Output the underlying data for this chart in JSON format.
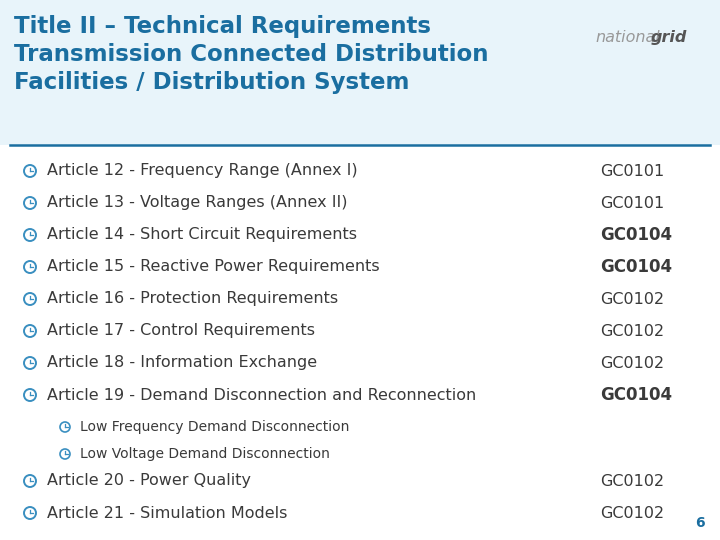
{
  "title_line1": "Title II – Technical Requirements",
  "title_line2": "Transmission Connected Distribution",
  "title_line3": "Facilities / Distribution System",
  "title_color": "#1A6EA0",
  "header_bg": "#E8F4FA",
  "body_bg": "#FFFFFF",
  "logo_normal": "national",
  "logo_bold": "grid",
  "logo_normal_color": "#999999",
  "logo_bold_color": "#555555",
  "line_color": "#1A6EA0",
  "bullet_color": "#3A8FC0",
  "text_color": "#3A3A3A",
  "gc_color": "#3A3A3A",
  "items": [
    {
      "text": "Article 12 - Frequency Range (Annex I)",
      "gc": "GC0101",
      "bold_gc": false,
      "indent": 0,
      "gc_inline": false
    },
    {
      "text": "Article 13 - Voltage Ranges (Annex II)",
      "gc": "GC0101",
      "bold_gc": false,
      "indent": 0,
      "gc_inline": false
    },
    {
      "text": "Article 14 - Short Circuit Requirements",
      "gc": "GC0104",
      "bold_gc": true,
      "indent": 0,
      "gc_inline": false
    },
    {
      "text": "Article 15 - Reactive Power Requirements",
      "gc": "GC0104",
      "bold_gc": true,
      "indent": 0,
      "gc_inline": false
    },
    {
      "text": "Article 16 - Protection Requirements",
      "gc": "GC0102",
      "bold_gc": false,
      "indent": 0,
      "gc_inline": false
    },
    {
      "text": "Article 17 - Control Requirements",
      "gc": "GC0102",
      "bold_gc": false,
      "indent": 0,
      "gc_inline": false
    },
    {
      "text": "Article 18 - Information Exchange",
      "gc": "GC0102",
      "bold_gc": false,
      "indent": 0,
      "gc_inline": false
    },
    {
      "text": "Article 19 - Demand Disconnection and Reconnection",
      "gc": "GC0104",
      "bold_gc": true,
      "indent": 0,
      "gc_inline": true
    },
    {
      "text": "Low Frequency Demand Disconnection",
      "gc": "",
      "bold_gc": false,
      "indent": 1,
      "gc_inline": false
    },
    {
      "text": "Low Voltage Demand Disconnection",
      "gc": "",
      "bold_gc": false,
      "indent": 1,
      "gc_inline": false
    },
    {
      "text": "Article 20 - Power Quality",
      "gc": "GC0102",
      "bold_gc": false,
      "indent": 0,
      "gc_inline": false
    },
    {
      "text": "Article 21 - Simulation Models",
      "gc": "GC0102",
      "bold_gc": false,
      "indent": 0,
      "gc_inline": false
    }
  ],
  "page_number": "6",
  "item_fontsize": 11.5,
  "sub_item_fontsize": 10.0,
  "title_fontsize": 16.5,
  "logo_fontsize": 11.5
}
